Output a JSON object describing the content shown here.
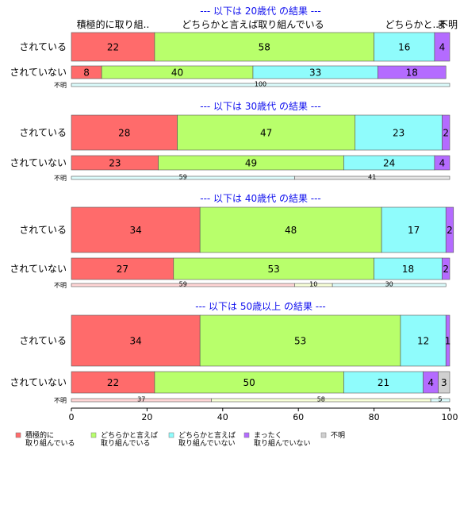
{
  "chart_data": {
    "type": "bar",
    "orientation": "horizontal-stacked-percent",
    "categories": [
      "積極的に取り組んでいる",
      "どちらかと言えば取り組んでいる",
      "どちらかと言えば取り組んでいない",
      "まったく取り組んでいない",
      "不明"
    ],
    "header_labels": [
      "積極的に取り組..",
      "どちらかと言えば取り組んでいる",
      "どちらかと..",
      "ま",
      "不明"
    ],
    "colors": [
      "#ff6b6b",
      "#b8ff6b",
      "#8ffcfc",
      "#b46bff",
      "#d0d0d0"
    ],
    "x_ticks": [
      0,
      20,
      40,
      60,
      80,
      100
    ],
    "xlim": [
      0,
      100
    ],
    "legend": {
      "placement": "bottom",
      "entries": [
        [
          "積極的に",
          "取り組んでいる"
        ],
        [
          "どちらかと言えば",
          "取り組んでいる"
        ],
        [
          "どちらかと言えば",
          "取り組んでいない"
        ],
        [
          "まったく",
          "取り組んでいない"
        ],
        [
          "不明"
        ]
      ]
    },
    "panels": [
      {
        "title": "--- 以下は 20歳代 の結果 ---",
        "rows": [
          {
            "label": "されている",
            "values": [
              22,
              58,
              16,
              4,
              0
            ]
          },
          {
            "label": "されていない",
            "values": [
              8,
              40,
              33,
              18,
              0
            ]
          },
          {
            "label": "不明",
            "values": [
              0,
              0,
              100,
              0,
              0
            ]
          }
        ]
      },
      {
        "title": "--- 以下は 30歳代 の結果 ---",
        "rows": [
          {
            "label": "されている",
            "values": [
              28,
              47,
              23,
              2,
              0
            ]
          },
          {
            "label": "されていない",
            "values": [
              23,
              49,
              24,
              4,
              0
            ]
          },
          {
            "label": "不明",
            "values": [
              0,
              0,
              59,
              0,
              41
            ]
          }
        ]
      },
      {
        "title": "--- 以下は 40歳代 の結果 ---",
        "rows": [
          {
            "label": "されている",
            "values": [
              34,
              48,
              17,
              2,
              0
            ]
          },
          {
            "label": "されていない",
            "values": [
              27,
              53,
              18,
              2,
              0
            ]
          },
          {
            "label": "不明",
            "values": [
              59,
              10,
              30,
              0,
              0
            ]
          }
        ]
      },
      {
        "title": "--- 以下は 50歳以上 の結果 ---",
        "rows": [
          {
            "label": "されている",
            "values": [
              34,
              53,
              12,
              1,
              0
            ]
          },
          {
            "label": "されていない",
            "values": [
              22,
              50,
              21,
              4,
              3
            ]
          },
          {
            "label": "不明",
            "values": [
              37,
              58,
              5,
              0,
              0
            ]
          }
        ]
      }
    ]
  }
}
